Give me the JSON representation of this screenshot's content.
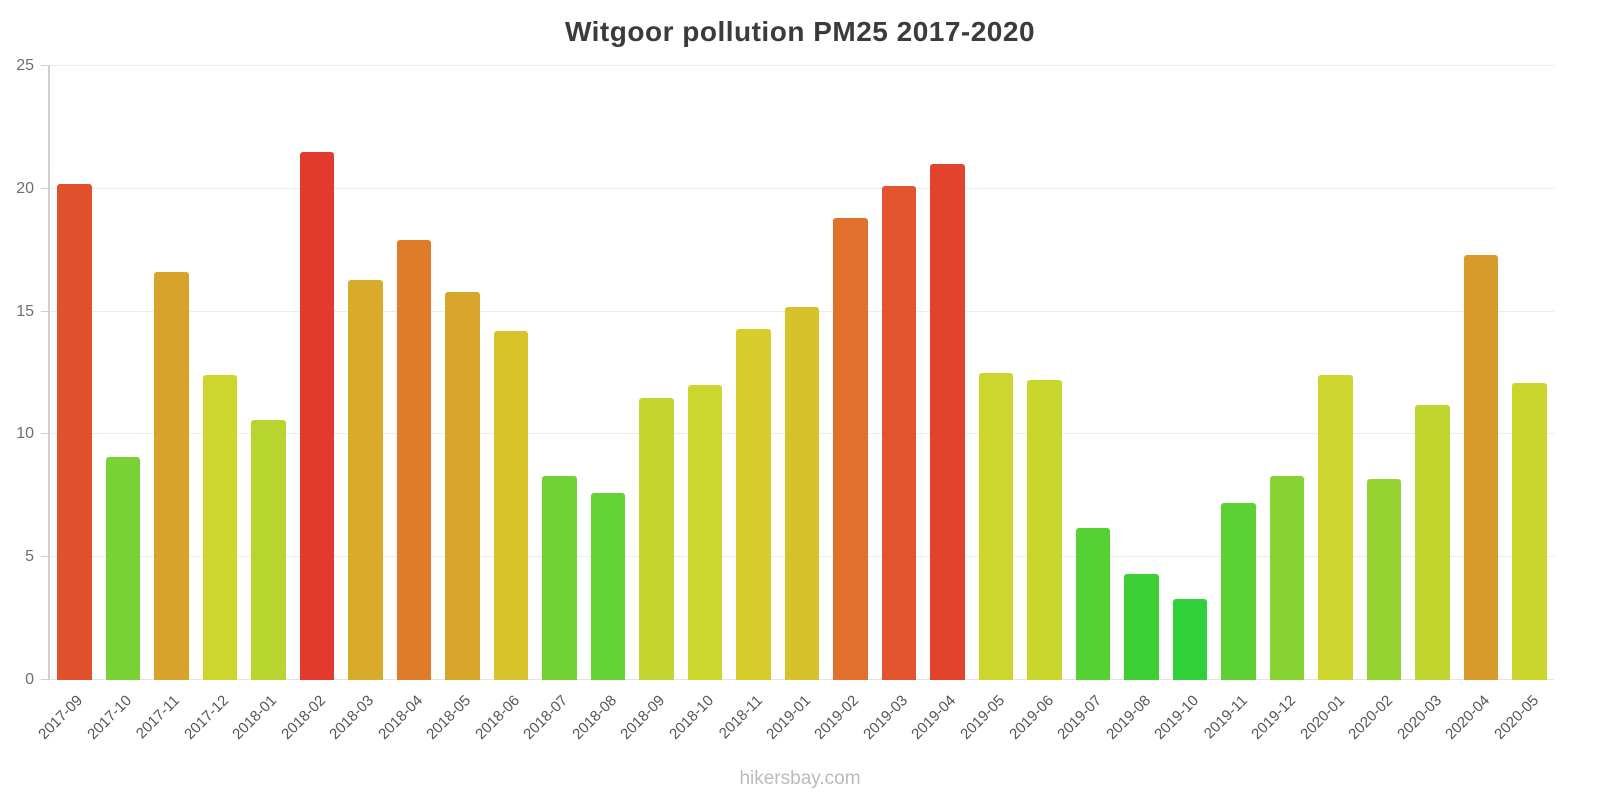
{
  "title": "Witgoor pollution PM25 2017-2020",
  "footer": "hikersbay.com",
  "chart_data": {
    "type": "bar",
    "title": "Witgoor pollution PM25 2017-2020",
    "xlabel": "",
    "ylabel": "",
    "ylim": [
      0,
      25
    ],
    "yticks": [
      0,
      5,
      10,
      15,
      20,
      25
    ],
    "grid": true,
    "legend": false,
    "categories": [
      "2017-09",
      "2017-10",
      "2017-11",
      "2017-12",
      "2018-01",
      "2018-02",
      "2018-03",
      "2018-04",
      "2018-05",
      "2018-06",
      "2018-07",
      "2018-08",
      "2018-09",
      "2018-10",
      "2018-11",
      "2019-01",
      "2019-02",
      "2019-03",
      "2019-04",
      "2019-05",
      "2019-06",
      "2019-07",
      "2019-08",
      "2019-10",
      "2019-11",
      "2019-12",
      "2020-01",
      "2020-02",
      "2020-03",
      "2020-04",
      "2020-05"
    ],
    "values": [
      20.2,
      9.1,
      16.6,
      12.4,
      10.6,
      21.5,
      16.3,
      17.9,
      15.8,
      14.2,
      8.3,
      7.6,
      11.5,
      12.0,
      14.3,
      15.2,
      18.8,
      20.1,
      21.0,
      12.5,
      12.2,
      6.2,
      4.3,
      3.3,
      7.2,
      8.3,
      12.4,
      8.2,
      11.2,
      17.3,
      12.1
    ],
    "colors": [
      "#e2512e",
      "#79d235",
      "#d8a32b",
      "#ccd62e",
      "#b8d52f",
      "#e23b2e",
      "#d8ab2b",
      "#e07b2a",
      "#d8a52b",
      "#d8c32b",
      "#72d235",
      "#62d234",
      "#c4d52f",
      "#cbd62e",
      "#d6cd2c",
      "#d8c22b",
      "#e0702b",
      "#e1542d",
      "#e2432d",
      "#ccd62e",
      "#c9d62e",
      "#55d134",
      "#3dd035",
      "#2fd03a",
      "#5cd134",
      "#86d331",
      "#ccd62e",
      "#95d430",
      "#c1d52f",
      "#d89a2b",
      "#c9d62e"
    ],
    "axis_color": "#cfcfcf",
    "grid_color": "#ececec",
    "tick_label_color": "#6e6e6e"
  }
}
